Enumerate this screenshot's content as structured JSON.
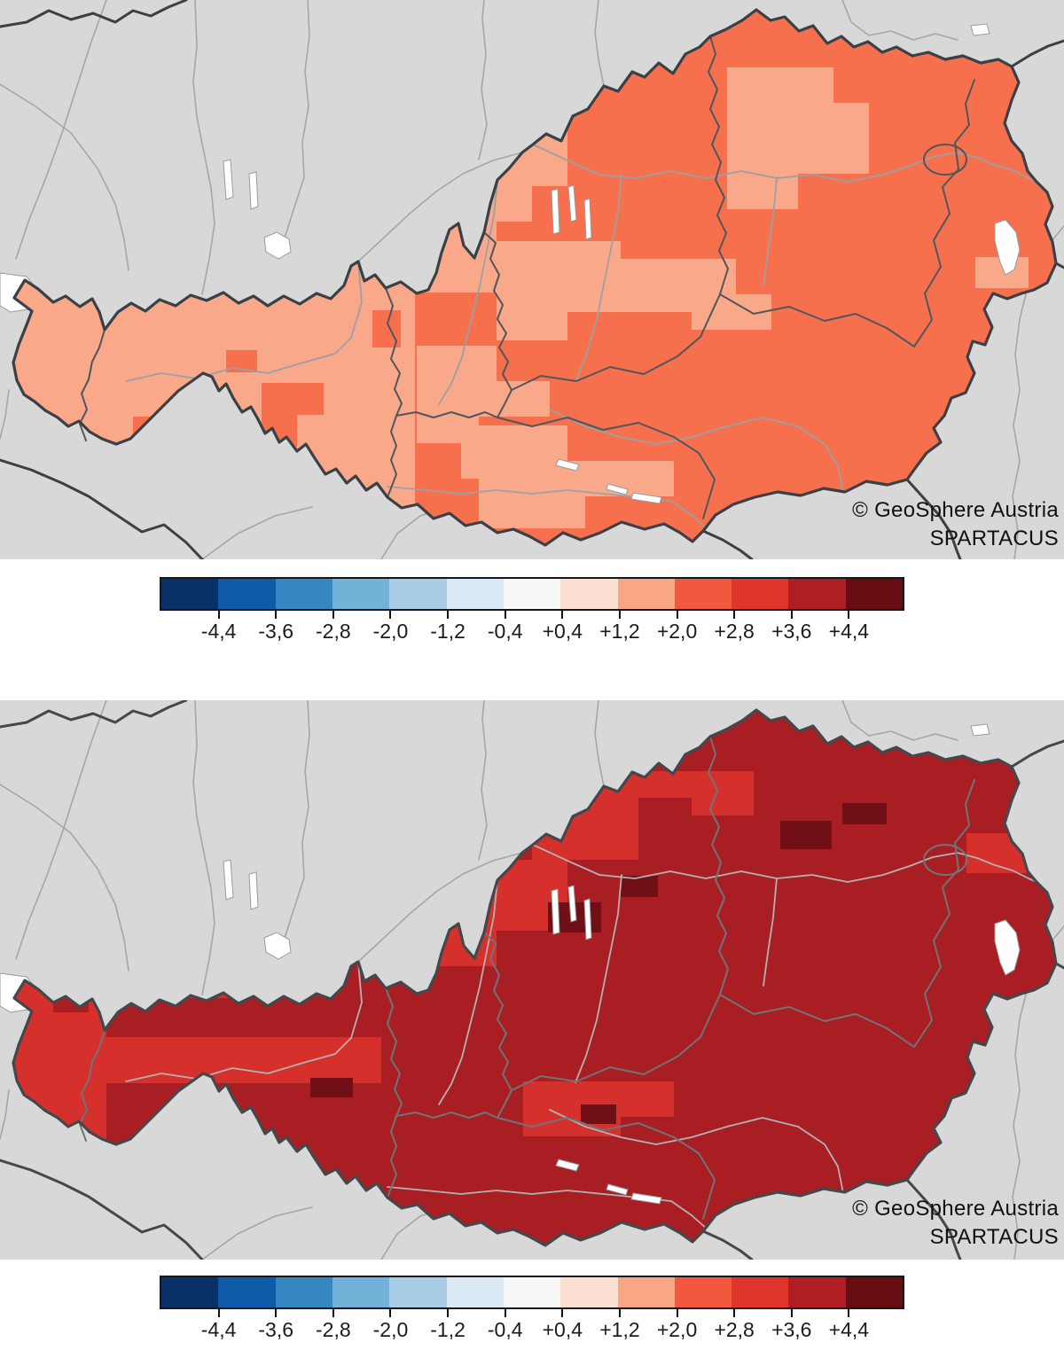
{
  "figure": {
    "description": "Two SPARTACUS temperature anomaly maps of Austria with diverging color scale",
    "credit_line1": "© GeoSphere Austria",
    "credit_line2": "SPARTACUS"
  },
  "maps": [
    {
      "name": "anomaly-map-upper",
      "credit_line1": "© GeoSphere Austria",
      "credit_line2": "SPARTACUS",
      "palette": {
        "land": "#d8d8d8",
        "outline": "#3a4045",
        "state_border": "#50565c",
        "river": "#9aa0a4",
        "ext_river": "#a6a6a6",
        "lake": "#ffffff",
        "lake_stroke": "#9a9a9a",
        "base": "#f7704e",
        "patch": "#f9a88a",
        "extra": "#f7704e"
      }
    },
    {
      "name": "anomaly-map-lower",
      "credit_line1": "© GeoSphere Austria",
      "credit_line2": "SPARTACUS",
      "palette": {
        "land": "#d8d8d8",
        "outline": "#43484c",
        "state_border": "#6f7478",
        "river": "#b2b2b2",
        "ext_river": "#a6a6a6",
        "lake": "#ffffff",
        "lake_stroke": "#9a9a9a",
        "base": "#a81e23",
        "patch": "#d5302b",
        "extra": "#701016"
      }
    }
  ],
  "colorbar": {
    "labels": [
      "-4,4",
      "-3,6",
      "-2,8",
      "-2,0",
      "-1,2",
      "-0,4",
      "+0,4",
      "+1,2",
      "+2,0",
      "+2,8",
      "+3,6",
      "+4,4"
    ],
    "colors": [
      "#0a3166",
      "#105ba8",
      "#3587c0",
      "#72b2d9",
      "#a7cee4",
      "#dceaf5",
      "#f7f7f6",
      "#fce1d2",
      "#faa584",
      "#f2583e",
      "#df352a",
      "#ae1e23",
      "#670c10"
    ],
    "border_color": "#15151e",
    "tick_color": "#111111",
    "label_color": "#1b1b1b",
    "segment_count": 13
  }
}
